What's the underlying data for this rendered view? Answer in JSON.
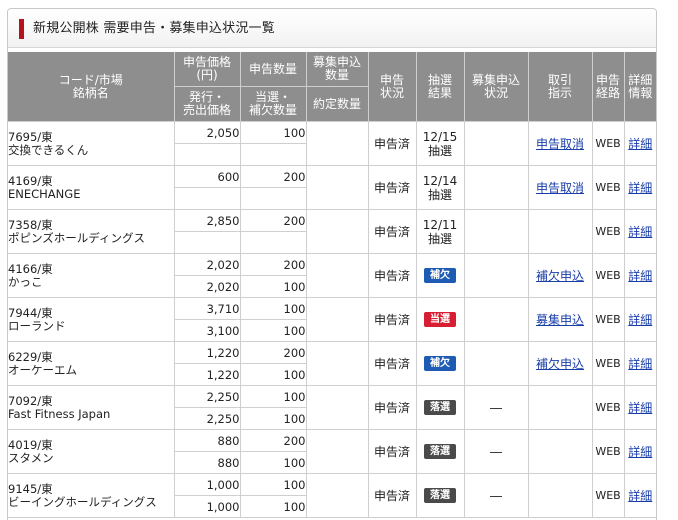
{
  "page": {
    "title": "新規公開株 需要申告・募集申込状況一覧"
  },
  "headers": {
    "code_market": "コード/市場",
    "stock_name": "銘柄名",
    "declared_price": "申告価格 (円)",
    "declared_qty": "申告数量",
    "offer_qty": "募集申込 数量",
    "declare_status": "申告 状況",
    "lottery_result": "抽選 結果",
    "offer_status": "募集申込 状況",
    "order_instruction": "取引 指示",
    "route": "申告 経路",
    "details": "詳細 情報",
    "issue_price": "発行・ 売出価格",
    "winning_qty": "当選・ 補欠数量",
    "contract_qty": "約定数量"
  },
  "rows": [
    {
      "code_market": "7695/東",
      "name": "交換できるくん",
      "declared_price": "2,050",
      "declared_qty": "100",
      "issue_price": "",
      "winning_qty": "",
      "status": "申告済",
      "result_text": "12/15 抽選",
      "result_badge": "",
      "offer_status": "",
      "instruction": "申告取消",
      "route": "WEB",
      "details": "詳細"
    },
    {
      "code_market": "4169/東",
      "name": "ENECHANGE",
      "declared_price": "600",
      "declared_qty": "200",
      "issue_price": "",
      "winning_qty": "",
      "status": "申告済",
      "result_text": "12/14 抽選",
      "result_badge": "",
      "offer_status": "",
      "instruction": "申告取消",
      "route": "WEB",
      "details": "詳細"
    },
    {
      "code_market": "7358/東",
      "name": "ポピンズホールディングス",
      "declared_price": "2,850",
      "declared_qty": "200",
      "issue_price": "",
      "winning_qty": "",
      "status": "申告済",
      "result_text": "12/11 抽選",
      "result_badge": "",
      "offer_status": "",
      "instruction": "",
      "route": "WEB",
      "details": "詳細"
    },
    {
      "code_market": "4166/東",
      "name": "かっこ",
      "declared_price": "2,020",
      "declared_qty": "200",
      "issue_price": "2,020",
      "winning_qty": "100",
      "status": "申告済",
      "result_text": "",
      "result_badge": "補欠",
      "badge_color": "blue",
      "offer_status": "",
      "instruction": "補欠申込",
      "route": "WEB",
      "details": "詳細"
    },
    {
      "code_market": "7944/東",
      "name": "ローランド",
      "declared_price": "3,710",
      "declared_qty": "100",
      "issue_price": "3,100",
      "winning_qty": "100",
      "status": "申告済",
      "result_text": "",
      "result_badge": "当選",
      "badge_color": "red",
      "offer_status": "",
      "instruction": "募集申込",
      "route": "WEB",
      "details": "詳細"
    },
    {
      "code_market": "6229/東",
      "name": "オーケーエム",
      "declared_price": "1,220",
      "declared_qty": "200",
      "issue_price": "1,220",
      "winning_qty": "100",
      "status": "申告済",
      "result_text": "",
      "result_badge": "補欠",
      "badge_color": "blue",
      "offer_status": "",
      "instruction": "補欠申込",
      "route": "WEB",
      "details": "詳細"
    },
    {
      "code_market": "7092/東",
      "name": "Fast Fitness Japan",
      "declared_price": "2,250",
      "declared_qty": "100",
      "issue_price": "2,250",
      "winning_qty": "100",
      "status": "申告済",
      "result_text": "",
      "result_badge": "落選",
      "badge_color": "gray",
      "offer_status": "―",
      "instruction": "",
      "route": "WEB",
      "details": "詳細"
    },
    {
      "code_market": "4019/東",
      "name": "スタメン",
      "declared_price": "880",
      "declared_qty": "200",
      "issue_price": "880",
      "winning_qty": "100",
      "status": "申告済",
      "result_text": "",
      "result_badge": "落選",
      "badge_color": "gray",
      "offer_status": "―",
      "instruction": "",
      "route": "WEB",
      "details": "詳細"
    },
    {
      "code_market": "9145/東",
      "name": "ビーイングホールディングス",
      "declared_price": "1,000",
      "declared_qty": "100",
      "issue_price": "1,000",
      "winning_qty": "100",
      "status": "申告済",
      "result_text": "",
      "result_badge": "落選",
      "badge_color": "gray",
      "offer_status": "―",
      "instruction": "",
      "route": "WEB",
      "details": "詳細"
    }
  ]
}
